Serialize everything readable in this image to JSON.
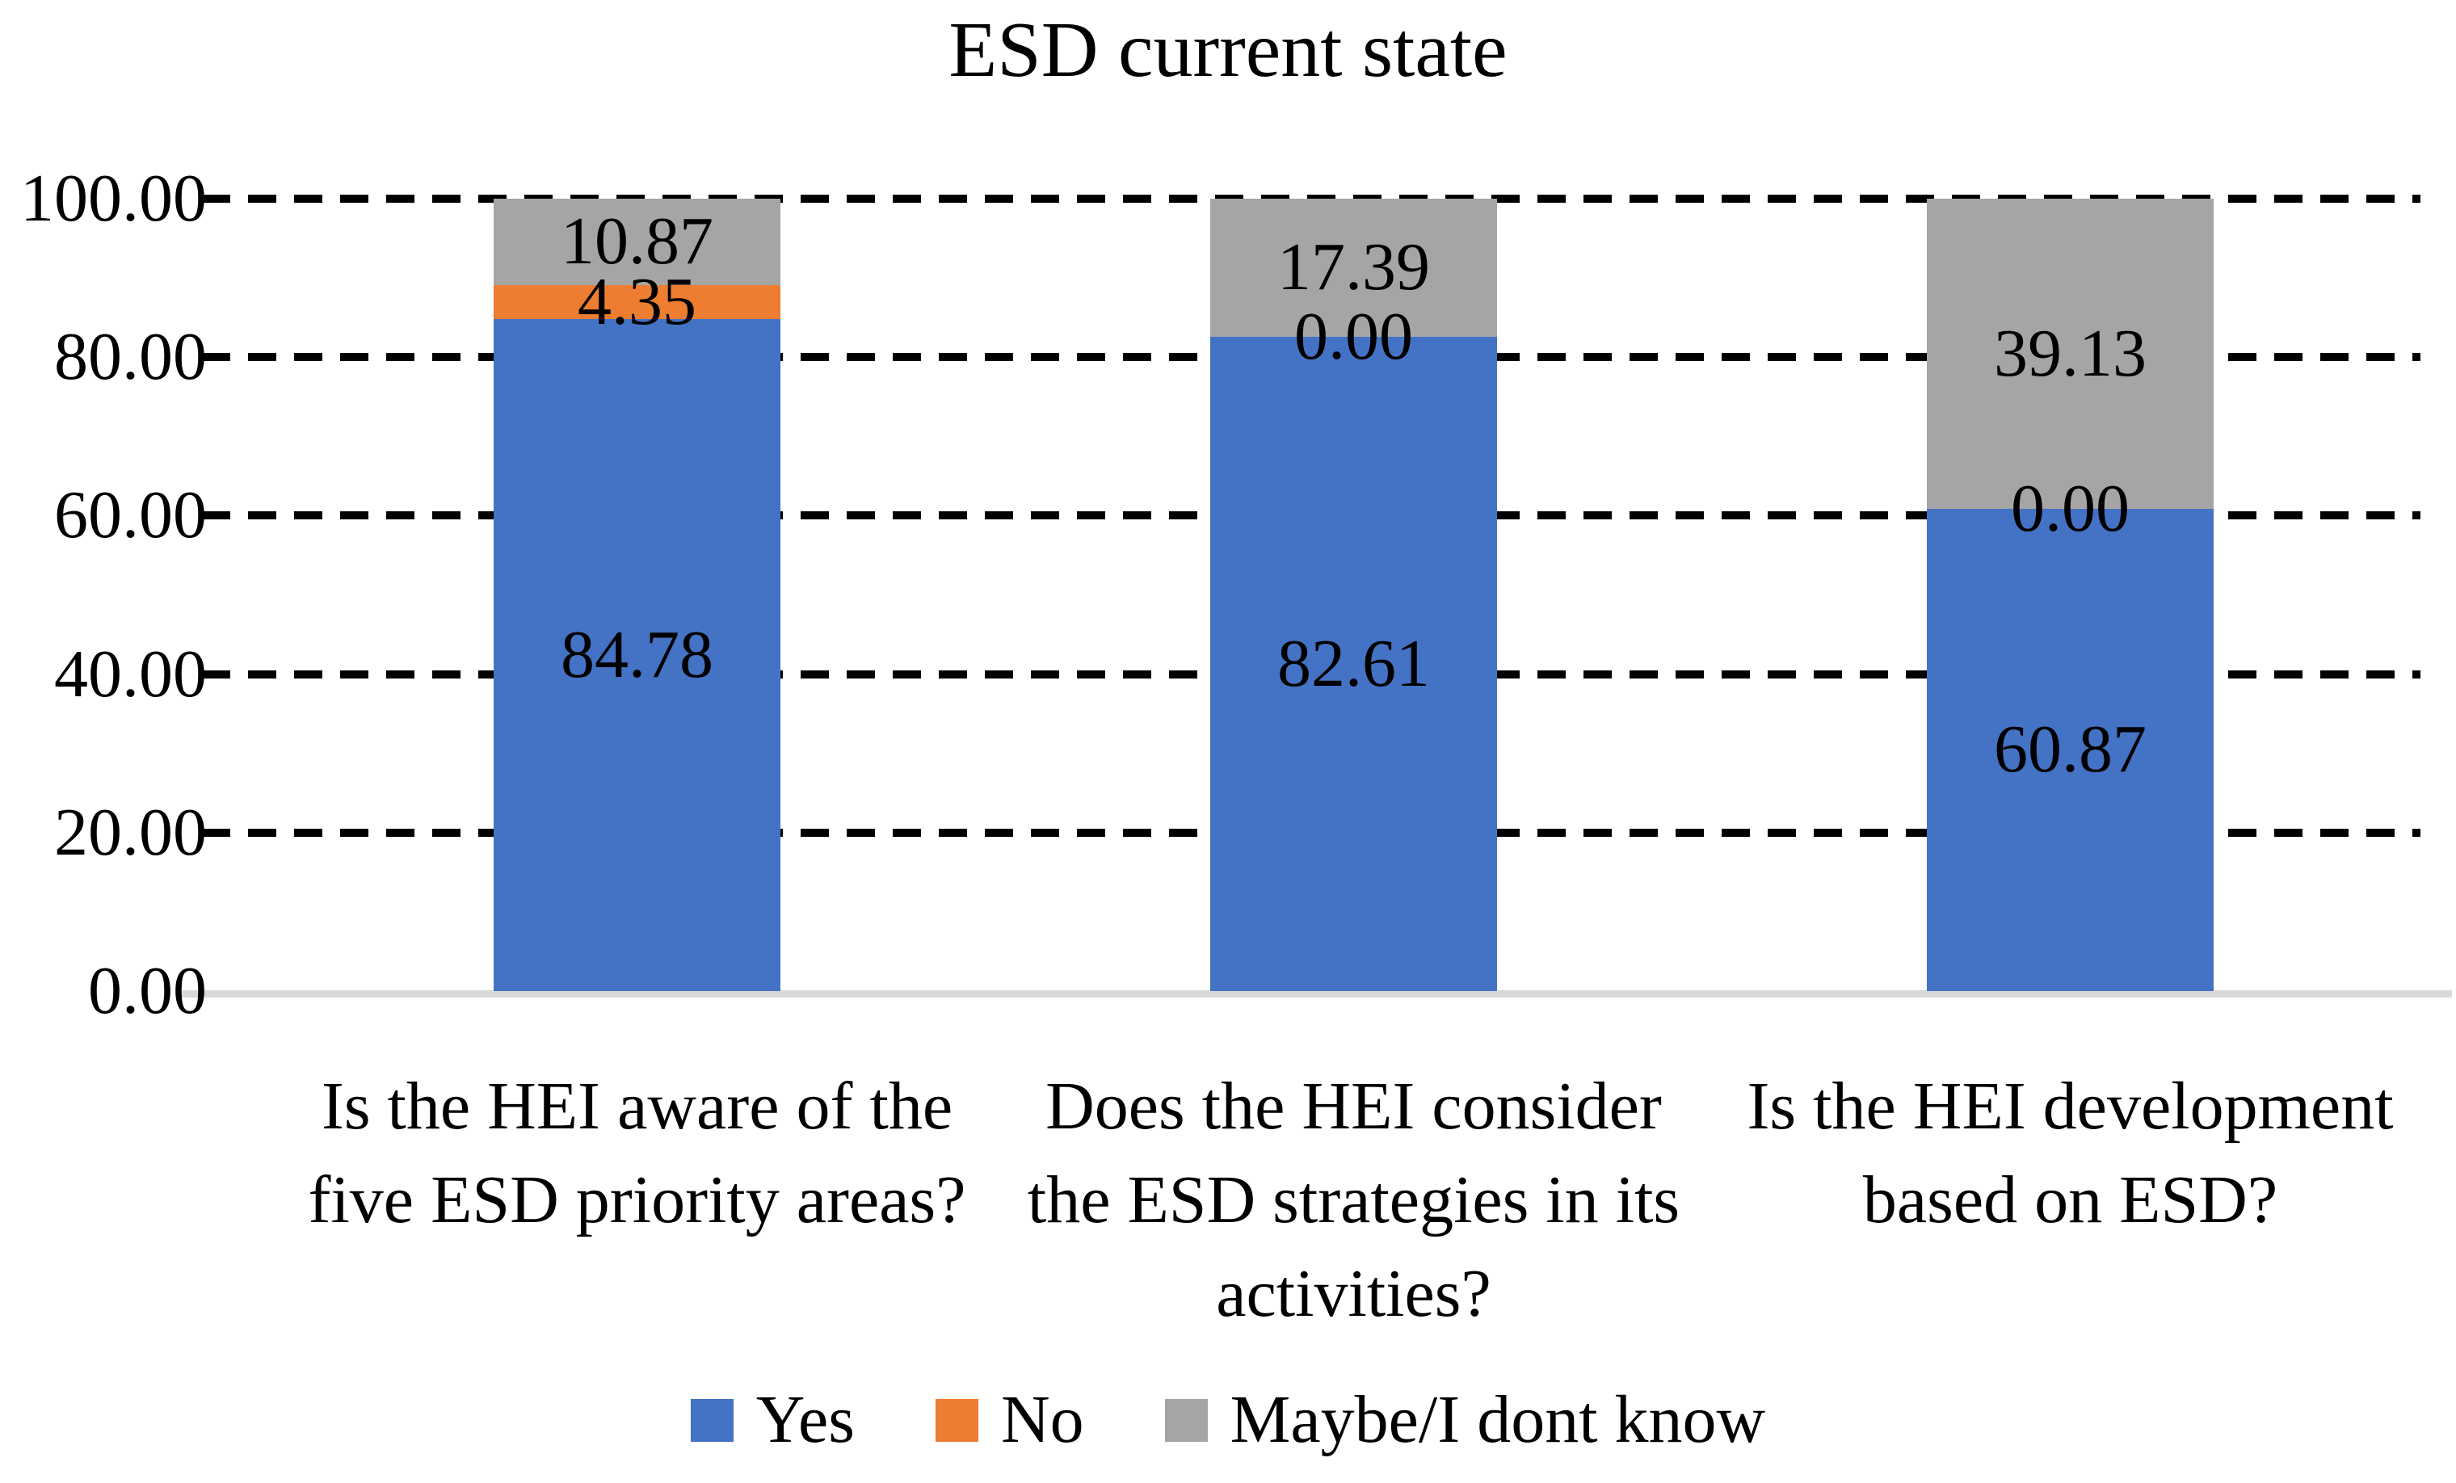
{
  "chart_data": {
    "type": "bar",
    "stacked": true,
    "title": "ESD current state",
    "categories": [
      {
        "label": "Is the HEI aware of the five ESD priority areas?",
        "lines": [
          "Is the HEI aware of the",
          "five ESD priority areas?"
        ]
      },
      {
        "label": "Does the HEI consider the ESD strategies in its activities?",
        "lines": [
          "Does the HEI consider",
          "the ESD strategies in its",
          "activities?"
        ]
      },
      {
        "label": "Is the HEI development based on ESD?",
        "lines": [
          "Is the HEI development",
          "based on ESD?"
        ]
      }
    ],
    "series": [
      {
        "name": "Yes",
        "color": "#4472C4",
        "values": [
          84.78,
          82.61,
          60.87
        ],
        "labels": [
          "84.78",
          "82.61",
          "60.87"
        ]
      },
      {
        "name": "No",
        "color": "#ED7D31",
        "values": [
          4.35,
          0.0,
          0.0
        ],
        "labels": [
          "4.35",
          "0.00",
          "0.00"
        ]
      },
      {
        "name": "Maybe/I dont know",
        "color": "#A5A5A5",
        "values": [
          10.87,
          17.39,
          39.13
        ],
        "labels": [
          "10.87",
          "17.39",
          "39.13"
        ]
      }
    ],
    "ylim": [
      0,
      100
    ],
    "yticks": [
      {
        "value": 0,
        "label": "0.00"
      },
      {
        "value": 20,
        "label": "20.00"
      },
      {
        "value": 40,
        "label": "40.00"
      },
      {
        "value": 60,
        "label": "60.00"
      },
      {
        "value": 80,
        "label": "80.00"
      },
      {
        "value": 100,
        "label": "100.00"
      }
    ],
    "gridlines": "dashed",
    "legend_position": "bottom",
    "colors": {
      "axis_line": "#D9D9D9",
      "gridline": "#000000",
      "text": "#000000",
      "background": "#FFFFFF"
    }
  }
}
